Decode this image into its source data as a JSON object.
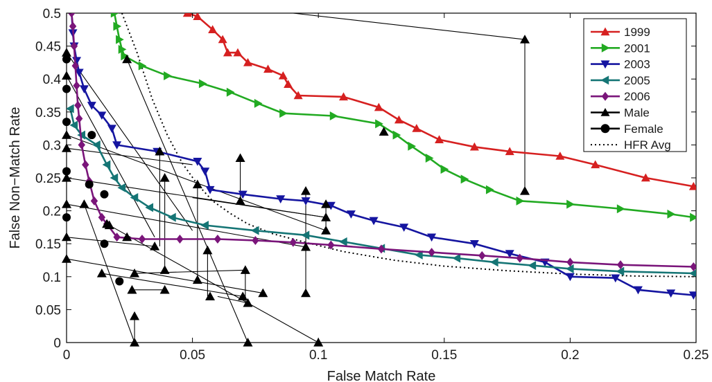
{
  "chart_data": {
    "type": "line",
    "xlabel": "False Match Rate",
    "ylabel": "False Non−Match Rate",
    "xlim": [
      0,
      0.25
    ],
    "ylim": [
      0,
      0.5
    ],
    "xticks": [
      0,
      0.05,
      0.1,
      0.15,
      0.2,
      0.25
    ],
    "xtick_labels": [
      "0",
      "0.05",
      "0.1",
      "0.15",
      "0.2",
      "0.25"
    ],
    "yticks": [
      0,
      0.05,
      0.1,
      0.15,
      0.2,
      0.25,
      0.3,
      0.35,
      0.4,
      0.45,
      0.5
    ],
    "ytick_labels": [
      "0",
      "0.05",
      "0.1",
      "0.15",
      "0.2",
      "0.25",
      "0.3",
      "0.35",
      "0.4",
      "0.45",
      "0.5"
    ],
    "grid": false,
    "legend_position": "top-right",
    "legend": [
      "1999",
      "2001",
      "2003",
      "2005",
      "2006",
      "Male",
      "Female",
      "HFR Avg"
    ],
    "series": [
      {
        "name": "1999",
        "color": "#d62020",
        "marker": "triangle-up",
        "points": [
          [
            0.048,
            0.5
          ],
          [
            0.052,
            0.495
          ],
          [
            0.058,
            0.475
          ],
          [
            0.062,
            0.46
          ],
          [
            0.064,
            0.44
          ],
          [
            0.068,
            0.44
          ],
          [
            0.072,
            0.425
          ],
          [
            0.08,
            0.415
          ],
          [
            0.086,
            0.405
          ],
          [
            0.088,
            0.392
          ],
          [
            0.092,
            0.375
          ],
          [
            0.11,
            0.373
          ],
          [
            0.124,
            0.357
          ],
          [
            0.132,
            0.338
          ],
          [
            0.139,
            0.325
          ],
          [
            0.148,
            0.308
          ],
          [
            0.162,
            0.297
          ],
          [
            0.176,
            0.29
          ],
          [
            0.196,
            0.283
          ],
          [
            0.21,
            0.27
          ],
          [
            0.23,
            0.25
          ],
          [
            0.249,
            0.237
          ]
        ]
      },
      {
        "name": "2001",
        "color": "#22aa22",
        "marker": "triangle-right",
        "points": [
          [
            0.019,
            0.5
          ],
          [
            0.02,
            0.48
          ],
          [
            0.021,
            0.46
          ],
          [
            0.022,
            0.445
          ],
          [
            0.023,
            0.435
          ],
          [
            0.03,
            0.42
          ],
          [
            0.04,
            0.405
          ],
          [
            0.054,
            0.393
          ],
          [
            0.065,
            0.38
          ],
          [
            0.076,
            0.363
          ],
          [
            0.086,
            0.348
          ],
          [
            0.106,
            0.344
          ],
          [
            0.124,
            0.332
          ],
          [
            0.131,
            0.315
          ],
          [
            0.137,
            0.298
          ],
          [
            0.144,
            0.28
          ],
          [
            0.15,
            0.263
          ],
          [
            0.158,
            0.248
          ],
          [
            0.168,
            0.232
          ],
          [
            0.18,
            0.215
          ],
          [
            0.2,
            0.21
          ],
          [
            0.22,
            0.203
          ],
          [
            0.24,
            0.195
          ],
          [
            0.249,
            0.19
          ]
        ]
      },
      {
        "name": "2003",
        "color": "#1515a0",
        "marker": "triangle-down",
        "points": [
          [
            0.002,
            0.5
          ],
          [
            0.0025,
            0.47
          ],
          [
            0.003,
            0.45
          ],
          [
            0.004,
            0.428
          ],
          [
            0.005,
            0.41
          ],
          [
            0.007,
            0.385
          ],
          [
            0.01,
            0.36
          ],
          [
            0.014,
            0.345
          ],
          [
            0.018,
            0.325
          ],
          [
            0.02,
            0.3
          ],
          [
            0.036,
            0.29
          ],
          [
            0.052,
            0.275
          ],
          [
            0.055,
            0.26
          ],
          [
            0.057,
            0.232
          ],
          [
            0.07,
            0.225
          ],
          [
            0.085,
            0.218
          ],
          [
            0.095,
            0.215
          ],
          [
            0.105,
            0.208
          ],
          [
            0.113,
            0.195
          ],
          [
            0.122,
            0.185
          ],
          [
            0.134,
            0.175
          ],
          [
            0.145,
            0.16
          ],
          [
            0.162,
            0.15
          ],
          [
            0.176,
            0.135
          ],
          [
            0.19,
            0.122
          ],
          [
            0.2,
            0.1
          ],
          [
            0.218,
            0.098
          ],
          [
            0.227,
            0.08
          ],
          [
            0.24,
            0.075
          ],
          [
            0.249,
            0.072
          ]
        ]
      },
      {
        "name": "2005",
        "color": "#157575",
        "marker": "triangle-left",
        "points": [
          [
            0.0015,
            0.355
          ],
          [
            0.003,
            0.33
          ],
          [
            0.006,
            0.315
          ],
          [
            0.012,
            0.3
          ],
          [
            0.016,
            0.27
          ],
          [
            0.019,
            0.25
          ],
          [
            0.022,
            0.235
          ],
          [
            0.027,
            0.22
          ],
          [
            0.033,
            0.205
          ],
          [
            0.042,
            0.19
          ],
          [
            0.055,
            0.178
          ],
          [
            0.075,
            0.17
          ],
          [
            0.095,
            0.163
          ],
          [
            0.11,
            0.153
          ],
          [
            0.125,
            0.143
          ],
          [
            0.14,
            0.133
          ],
          [
            0.155,
            0.128
          ],
          [
            0.17,
            0.122
          ],
          [
            0.185,
            0.117
          ],
          [
            0.2,
            0.112
          ],
          [
            0.22,
            0.108
          ],
          [
            0.249,
            0.105
          ]
        ]
      },
      {
        "name": "2006",
        "color": "#7a157a",
        "marker": "diamond",
        "points": [
          [
            0.002,
            0.5
          ],
          [
            0.0025,
            0.48
          ],
          [
            0.003,
            0.45
          ],
          [
            0.0035,
            0.42
          ],
          [
            0.004,
            0.39
          ],
          [
            0.0045,
            0.36
          ],
          [
            0.005,
            0.34
          ],
          [
            0.006,
            0.3
          ],
          [
            0.0075,
            0.27
          ],
          [
            0.009,
            0.245
          ],
          [
            0.011,
            0.215
          ],
          [
            0.014,
            0.19
          ],
          [
            0.016,
            0.18
          ],
          [
            0.02,
            0.16
          ],
          [
            0.03,
            0.157
          ],
          [
            0.045,
            0.157
          ],
          [
            0.06,
            0.157
          ],
          [
            0.075,
            0.155
          ],
          [
            0.09,
            0.152
          ],
          [
            0.105,
            0.148
          ],
          [
            0.125,
            0.142
          ],
          [
            0.145,
            0.137
          ],
          [
            0.165,
            0.132
          ],
          [
            0.18,
            0.128
          ],
          [
            0.2,
            0.122
          ],
          [
            0.22,
            0.118
          ],
          [
            0.249,
            0.115
          ]
        ]
      },
      {
        "name": "HFR Avg",
        "color": "#000000",
        "style": "dotted",
        "points": [
          [
            0.022,
            0.5
          ],
          [
            0.028,
            0.44
          ],
          [
            0.034,
            0.37
          ],
          [
            0.04,
            0.315
          ],
          [
            0.046,
            0.272
          ],
          [
            0.052,
            0.24
          ],
          [
            0.058,
            0.215
          ],
          [
            0.065,
            0.196
          ],
          [
            0.072,
            0.18
          ],
          [
            0.082,
            0.165
          ],
          [
            0.095,
            0.152
          ],
          [
            0.11,
            0.138
          ],
          [
            0.13,
            0.125
          ],
          [
            0.15,
            0.116
          ],
          [
            0.175,
            0.109
          ],
          [
            0.2,
            0.104
          ],
          [
            0.225,
            0.101
          ],
          [
            0.249,
            0.1
          ]
        ]
      }
    ],
    "male_points": [
      [
        0,
        0.44
      ],
      [
        0,
        0.405
      ],
      [
        0,
        0.315
      ],
      [
        0,
        0.295
      ],
      [
        0,
        0.25
      ],
      [
        0,
        0.21
      ],
      [
        0,
        0.16
      ],
      [
        0,
        0.127
      ],
      [
        0.007,
        0.21
      ],
      [
        0.014,
        0.105
      ],
      [
        0.016,
        0.18
      ],
      [
        0.017,
        0.178
      ],
      [
        0.024,
        0.43
      ],
      [
        0.024,
        0.16
      ],
      [
        0.026,
        0.08
      ],
      [
        0.027,
        0.105
      ],
      [
        0.027,
        0.04
      ],
      [
        0.027,
        0
      ],
      [
        0.035,
        0.146
      ],
      [
        0.037,
        0.29
      ],
      [
        0.039,
        0.11
      ],
      [
        0.039,
        0.08
      ],
      [
        0.039,
        0.25
      ],
      [
        0.052,
        0.24
      ],
      [
        0.052,
        0.095
      ],
      [
        0.056,
        0.14
      ],
      [
        0.057,
        0.07
      ],
      [
        0.069,
        0.28
      ],
      [
        0.069,
        0.215
      ],
      [
        0.07,
        0.07
      ],
      [
        0.071,
        0.11
      ],
      [
        0.072,
        0.06
      ],
      [
        0.072,
        0
      ],
      [
        0.078,
        0.075
      ],
      [
        0.095,
        0.23
      ],
      [
        0.095,
        0.145
      ],
      [
        0.095,
        0.075
      ],
      [
        0.1,
        0
      ],
      [
        0.103,
        0.21
      ],
      [
        0.103,
        0.19
      ],
      [
        0.103,
        0.17
      ],
      [
        0.126,
        0.32
      ],
      [
        0.182,
        0.46
      ],
      [
        0.182,
        0.23
      ]
    ],
    "female_points": [
      [
        0,
        0.43
      ],
      [
        0,
        0.385
      ],
      [
        0,
        0.335
      ],
      [
        0,
        0.26
      ],
      [
        0,
        0.19
      ],
      [
        0.009,
        0.24
      ],
      [
        0.01,
        0.315
      ],
      [
        0.015,
        0.225
      ],
      [
        0.015,
        0.15
      ],
      [
        0.021,
        0.093
      ]
    ],
    "male_segments": [
      [
        [
          0.09,
          0.5
        ],
        [
          0.182,
          0.46
        ]
      ],
      [
        [
          0.182,
          0.46
        ],
        [
          0.182,
          0.23
        ]
      ],
      [
        [
          0,
          0.44
        ],
        [
          0.05,
          0.17
        ]
      ],
      [
        [
          0,
          0.405
        ],
        [
          0.035,
          0.16
        ]
      ],
      [
        [
          0,
          0.315
        ],
        [
          0.103,
          0.17
        ]
      ],
      [
        [
          0,
          0.295
        ],
        [
          0.05,
          0.27
        ]
      ],
      [
        [
          0,
          0.25
        ],
        [
          0.103,
          0.19
        ]
      ],
      [
        [
          0,
          0.21
        ],
        [
          0.095,
          0.145
        ]
      ],
      [
        [
          0,
          0.16
        ],
        [
          0.035,
          0.146
        ]
      ],
      [
        [
          0,
          0.127
        ],
        [
          0.078,
          0.075
        ]
      ],
      [
        [
          0.024,
          0.43
        ],
        [
          0.072,
          0
        ]
      ],
      [
        [
          0.007,
          0.21
        ],
        [
          0.027,
          0
        ]
      ],
      [
        [
          0.014,
          0.105
        ],
        [
          0.07,
          0.07
        ]
      ],
      [
        [
          0.017,
          0.178
        ],
        [
          0.1,
          0
        ]
      ],
      [
        [
          0.027,
          0.105
        ],
        [
          0.071,
          0.11
        ]
      ],
      [
        [
          0.026,
          0.08
        ],
        [
          0.039,
          0.08
        ]
      ],
      [
        [
          0.037,
          0.29
        ],
        [
          0.037,
          0.146
        ]
      ],
      [
        [
          0.039,
          0.25
        ],
        [
          0.039,
          0.11
        ]
      ],
      [
        [
          0.052,
          0.24
        ],
        [
          0.052,
          0.095
        ]
      ],
      [
        [
          0.069,
          0.28
        ],
        [
          0.069,
          0.215
        ]
      ],
      [
        [
          0.071,
          0.11
        ],
        [
          0.071,
          0.06
        ]
      ],
      [
        [
          0.095,
          0.23
        ],
        [
          0.095,
          0.075
        ]
      ],
      [
        [
          0.103,
          0.21
        ],
        [
          0.103,
          0.17
        ]
      ],
      [
        [
          0.027,
          0.04
        ],
        [
          0.027,
          0
        ]
      ],
      [
        [
          0.056,
          0.14
        ],
        [
          0.056,
          0.07
        ]
      ],
      [
        [
          0.05,
          0.22
        ],
        [
          0.103,
          0.19
        ]
      ],
      [
        [
          0.06,
          0.07
        ],
        [
          0.072,
          0.06
        ]
      ]
    ]
  }
}
